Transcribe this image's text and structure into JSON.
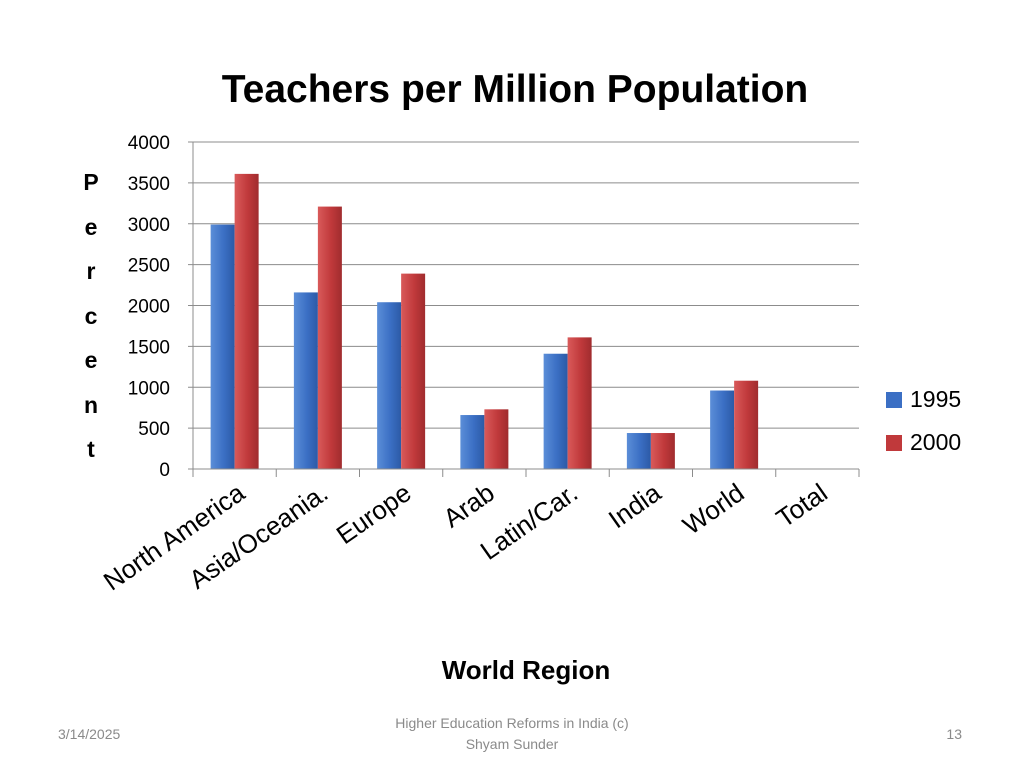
{
  "slide": {
    "footer_date": "3/14/2025",
    "footer_text_line1": "Higher Education Reforms in India (c)",
    "footer_text_line2": "Shyam Sunder",
    "page_number": "13"
  },
  "chart_data": {
    "type": "bar",
    "title": "Teachers per Million Population",
    "ylabel": "Percent",
    "xlabel": "World Region",
    "categories": [
      "North America",
      "Asia/Oceania.",
      "Europe",
      "Arab",
      "Latin/Car.",
      "India",
      "World",
      "Total"
    ],
    "series": [
      {
        "name": "1995",
        "color": "#3b6fc4",
        "values": [
          2990,
          2160,
          2040,
          660,
          1410,
          440,
          960,
          null
        ]
      },
      {
        "name": "2000",
        "color": "#c0393b",
        "values": [
          3610,
          3210,
          2390,
          730,
          1610,
          440,
          1080,
          null
        ]
      }
    ],
    "ylim": [
      0,
      4000
    ],
    "yticks": [
      0,
      500,
      1000,
      1500,
      2000,
      2500,
      3000,
      3500,
      4000
    ],
    "grid": true,
    "legend_position": "right"
  }
}
